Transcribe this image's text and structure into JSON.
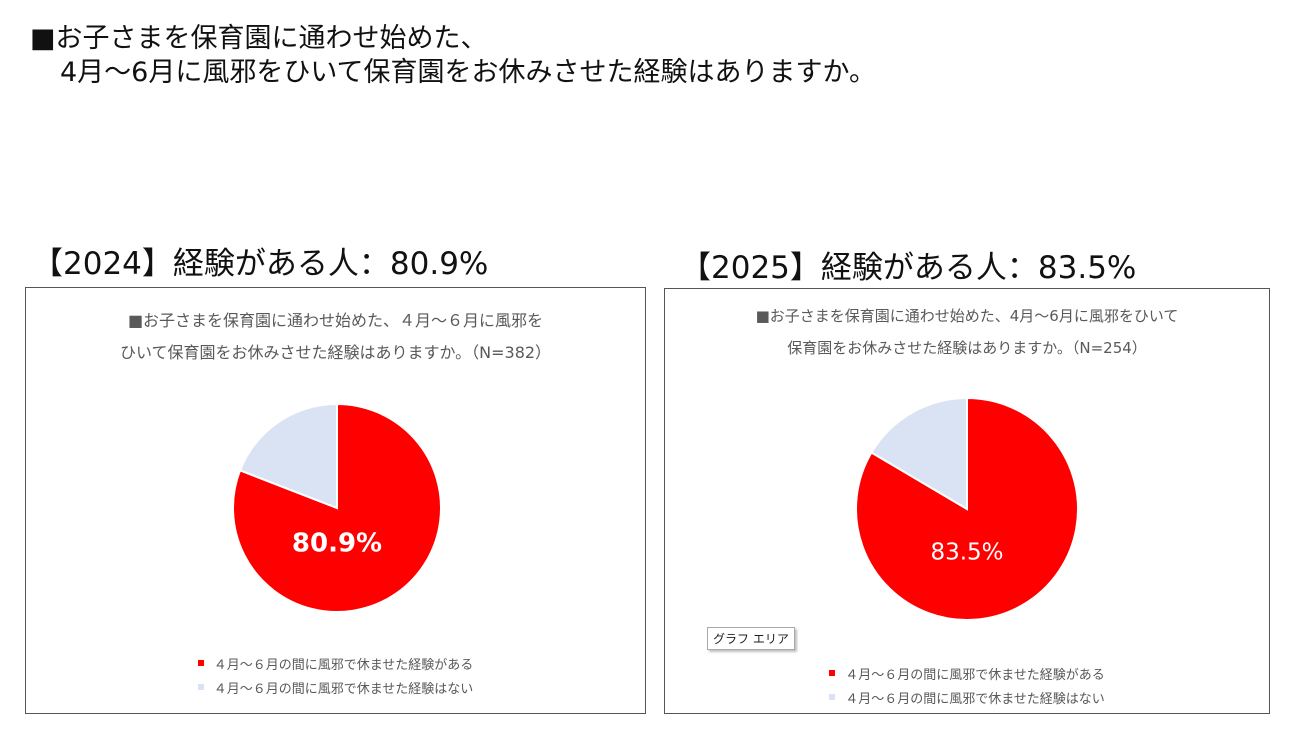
{
  "page": {
    "title_line1": "■お子さまを保育園に通わせ始めた、",
    "title_line2": "4月～6月に風邪をひいて保育園をお休みさせた経験はありますか。"
  },
  "sections": [
    {
      "heading": "【2024】経験がある人：80.9%",
      "chart_title_line1": "■お子さまを保育園に通わせ始めた、４月～６月に風邪を",
      "chart_title_line2": "ひいて保育園をお休みさせた経験はありますか。（N=382）"
    },
    {
      "heading": "【2025】経験がある人：83.5%",
      "chart_title_line1": "■お子さまを保育園に通わせ始めた、4月～6月に風邪をひいて",
      "chart_title_line2": "保育園をお休みさせた経験はありますか。（N=254）",
      "tooltip": "グラフ エリア"
    }
  ],
  "colors": {
    "yes": "#FF0000",
    "no": "#DAE3F3",
    "label": "#FFFFFF"
  },
  "chart_data": [
    {
      "type": "pie",
      "title": "■お子さまを保育園に通わせ始めた、４月～６月に風邪をひいて保育園をお休みさせた経験はありますか。（N=382）",
      "labels": [
        "４月～６月の間に風邪で休ませた経験がある",
        "４月～６月の間に風邪で休ませた経験はない"
      ],
      "values": [
        80.9,
        19.1
      ],
      "data_labels": [
        "80.9%",
        ""
      ],
      "legend_position": "bottom"
    },
    {
      "type": "pie",
      "title": "■お子さまを保育園に通わせ始めた、4月～6月に風邪をひいて保育園をお休みさせた経験はありますか。（N=254）",
      "labels": [
        "４月～６月の間に風邪で休ませた経験がある",
        "４月～６月の間に風邪で休ませた経験はない"
      ],
      "values": [
        83.5,
        16.5
      ],
      "data_labels": [
        "83.5%",
        ""
      ],
      "legend_position": "bottom"
    }
  ]
}
